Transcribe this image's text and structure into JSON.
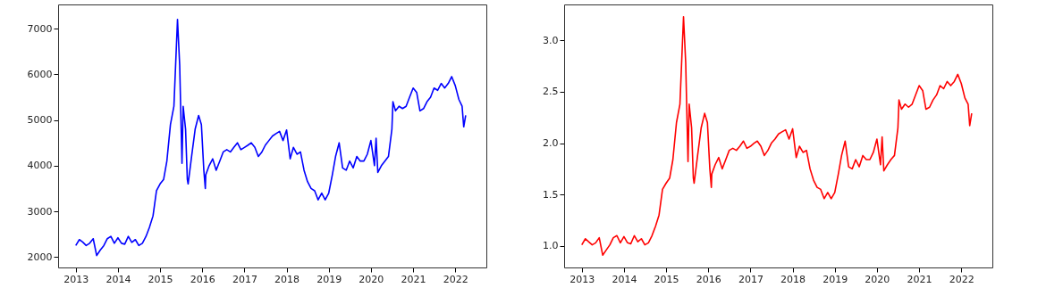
{
  "chart_data": [
    {
      "type": "line",
      "xlim": [
        "2012-08-01",
        "2022-09-27"
      ],
      "ylim": [
        1770,
        7530
      ],
      "xticks": [
        "2013",
        "2014",
        "2015",
        "2016",
        "2017",
        "2018",
        "2019",
        "2020",
        "2021",
        "2022"
      ],
      "yticks": [
        2000,
        3000,
        4000,
        5000,
        6000,
        7000
      ],
      "grid": false,
      "x": [
        "2013-01",
        "2013-02",
        "2013-03",
        "2013-04",
        "2013-05",
        "2013-06",
        "2013-07",
        "2013-08",
        "2013-09",
        "2013-10",
        "2013-11",
        "2013-12",
        "2014-01",
        "2014-02",
        "2014-03",
        "2014-04",
        "2014-05",
        "2014-06",
        "2014-07",
        "2014-08",
        "2014-09",
        "2014-10",
        "2014-11",
        "2014-12",
        "2015-01",
        "2015-02",
        "2015-03",
        "2015-04",
        "2015-05",
        "2015-06",
        "2015-06-20",
        "2015-07-01",
        "2015-07-10",
        "2015-07-20",
        "2015-08-10",
        "2015-08-25",
        "2015-09",
        "2015-10",
        "2015-11",
        "2015-12",
        "2015-12-25",
        "2016-01-15",
        "2016-01-28",
        "2016-02",
        "2016-03",
        "2016-04",
        "2016-05",
        "2016-06",
        "2016-07",
        "2016-08",
        "2016-09",
        "2016-10",
        "2016-11",
        "2016-12",
        "2017-01",
        "2017-02",
        "2017-03",
        "2017-04",
        "2017-05",
        "2017-06",
        "2017-07",
        "2017-08",
        "2017-09",
        "2017-10",
        "2017-11",
        "2017-12",
        "2018-01",
        "2018-02",
        "2018-03",
        "2018-04",
        "2018-05",
        "2018-06",
        "2018-07",
        "2018-08",
        "2018-09",
        "2018-10",
        "2018-11",
        "2018-12",
        "2019-01",
        "2019-02",
        "2019-03",
        "2019-04",
        "2019-05",
        "2019-06",
        "2019-07",
        "2019-08",
        "2019-09",
        "2019-10",
        "2019-11",
        "2019-12",
        "2020-01",
        "2020-02",
        "2020-02-15",
        "2020-03",
        "2020-04",
        "2020-05",
        "2020-06",
        "2020-07",
        "2020-07-10",
        "2020-08",
        "2020-09",
        "2020-10",
        "2020-11",
        "2020-12",
        "2021-01",
        "2021-02",
        "2021-03",
        "2021-04",
        "2021-05",
        "2021-06",
        "2021-07",
        "2021-08",
        "2021-09",
        "2021-10",
        "2021-11",
        "2021-12",
        "2022-01",
        "2022-02",
        "2022-03",
        "2022-03-15",
        "2022-04"
      ],
      "series": [
        {
          "color": "#0000ff",
          "values": [
            2250,
            2380,
            2330,
            2250,
            2300,
            2400,
            2030,
            2150,
            2250,
            2400,
            2450,
            2300,
            2420,
            2300,
            2280,
            2450,
            2320,
            2380,
            2250,
            2300,
            2450,
            2650,
            2900,
            3450,
            3600,
            3700,
            4100,
            4900,
            5300,
            7200,
            6200,
            5000,
            4050,
            5300,
            4800,
            3700,
            3600,
            4200,
            4800,
            5100,
            4900,
            3900,
            3500,
            3800,
            4000,
            4150,
            3900,
            4100,
            4300,
            4350,
            4300,
            4400,
            4500,
            4350,
            4400,
            4450,
            4500,
            4400,
            4200,
            4300,
            4450,
            4550,
            4650,
            4700,
            4750,
            4550,
            4780,
            4150,
            4400,
            4250,
            4300,
            3900,
            3650,
            3500,
            3450,
            3250,
            3400,
            3250,
            3400,
            3800,
            4200,
            4500,
            3950,
            3900,
            4100,
            3950,
            4200,
            4100,
            4100,
            4250,
            4550,
            4000,
            4600,
            3850,
            4000,
            4100,
            4200,
            4800,
            5400,
            5200,
            5300,
            5250,
            5300,
            5500,
            5700,
            5600,
            5200,
            5250,
            5400,
            5500,
            5700,
            5650,
            5800,
            5700,
            5800,
            5950,
            5750,
            5450,
            5300,
            4850,
            5100
          ]
        }
      ]
    },
    {
      "type": "line",
      "xlim": [
        "2012-08-01",
        "2022-09-27"
      ],
      "ylim": [
        0.79,
        3.35
      ],
      "xticks": [
        "2013",
        "2014",
        "2015",
        "2016",
        "2017",
        "2018",
        "2019",
        "2020",
        "2021",
        "2022"
      ],
      "yticks": [
        {
          "value": 1,
          "label": "1.0"
        },
        1.5,
        {
          "value": 2,
          "label": "2.0"
        },
        2.5,
        {
          "value": 3,
          "label": "3.0"
        }
      ],
      "grid": false,
      "x": [
        "2013-01",
        "2013-02",
        "2013-03",
        "2013-04",
        "2013-05",
        "2013-06",
        "2013-07",
        "2013-08",
        "2013-09",
        "2013-10",
        "2013-11",
        "2013-12",
        "2014-01",
        "2014-02",
        "2014-03",
        "2014-04",
        "2014-05",
        "2014-06",
        "2014-07",
        "2014-08",
        "2014-09",
        "2014-10",
        "2014-11",
        "2014-12",
        "2015-01",
        "2015-02",
        "2015-03",
        "2015-04",
        "2015-05",
        "2015-06",
        "2015-06-20",
        "2015-07-01",
        "2015-07-10",
        "2015-07-20",
        "2015-08-10",
        "2015-08-25",
        "2015-09",
        "2015-10",
        "2015-11",
        "2015-12",
        "2015-12-25",
        "2016-01-15",
        "2016-01-28",
        "2016-02",
        "2016-03",
        "2016-04",
        "2016-05",
        "2016-06",
        "2016-07",
        "2016-08",
        "2016-09",
        "2016-10",
        "2016-11",
        "2016-12",
        "2017-01",
        "2017-02",
        "2017-03",
        "2017-04",
        "2017-05",
        "2017-06",
        "2017-07",
        "2017-08",
        "2017-09",
        "2017-10",
        "2017-11",
        "2017-12",
        "2018-01",
        "2018-02",
        "2018-03",
        "2018-04",
        "2018-05",
        "2018-06",
        "2018-07",
        "2018-08",
        "2018-09",
        "2018-10",
        "2018-11",
        "2018-12",
        "2019-01",
        "2019-02",
        "2019-03",
        "2019-04",
        "2019-05",
        "2019-06",
        "2019-07",
        "2019-08",
        "2019-09",
        "2019-10",
        "2019-11",
        "2019-12",
        "2020-01",
        "2020-02",
        "2020-02-15",
        "2020-03",
        "2020-04",
        "2020-05",
        "2020-06",
        "2020-07",
        "2020-07-10",
        "2020-08",
        "2020-09",
        "2020-10",
        "2020-11",
        "2020-12",
        "2021-01",
        "2021-02",
        "2021-03",
        "2021-04",
        "2021-05",
        "2021-06",
        "2021-07",
        "2021-08",
        "2021-09",
        "2021-10",
        "2021-11",
        "2021-12",
        "2022-01",
        "2022-02",
        "2022-03",
        "2022-03-15",
        "2022-04"
      ],
      "series": [
        {
          "color": "#ff0000",
          "values": [
            1.01,
            1.07,
            1.04,
            1.01,
            1.03,
            1.08,
            0.91,
            0.96,
            1.01,
            1.08,
            1.1,
            1.03,
            1.09,
            1.03,
            1.02,
            1.1,
            1.04,
            1.07,
            1.01,
            1.03,
            1.1,
            1.19,
            1.3,
            1.55,
            1.61,
            1.66,
            1.84,
            2.2,
            2.38,
            3.23,
            2.78,
            2.24,
            1.82,
            2.38,
            2.15,
            1.66,
            1.61,
            1.88,
            2.15,
            2.29,
            2.2,
            1.75,
            1.57,
            1.7,
            1.79,
            1.86,
            1.75,
            1.84,
            1.93,
            1.95,
            1.93,
            1.97,
            2.02,
            1.95,
            1.97,
            2.0,
            2.02,
            1.97,
            1.88,
            1.93,
            2.0,
            2.04,
            2.09,
            2.11,
            2.13,
            2.04,
            2.14,
            1.86,
            1.97,
            1.91,
            1.93,
            1.75,
            1.64,
            1.57,
            1.55,
            1.46,
            1.52,
            1.46,
            1.52,
            1.7,
            1.88,
            2.02,
            1.77,
            1.75,
            1.84,
            1.77,
            1.88,
            1.84,
            1.84,
            1.91,
            2.04,
            1.79,
            2.06,
            1.73,
            1.79,
            1.84,
            1.88,
            2.15,
            2.42,
            2.33,
            2.38,
            2.35,
            2.38,
            2.47,
            2.56,
            2.51,
            2.33,
            2.35,
            2.42,
            2.47,
            2.56,
            2.53,
            2.6,
            2.56,
            2.6,
            2.67,
            2.58,
            2.44,
            2.38,
            2.17,
            2.29
          ]
        }
      ]
    }
  ]
}
